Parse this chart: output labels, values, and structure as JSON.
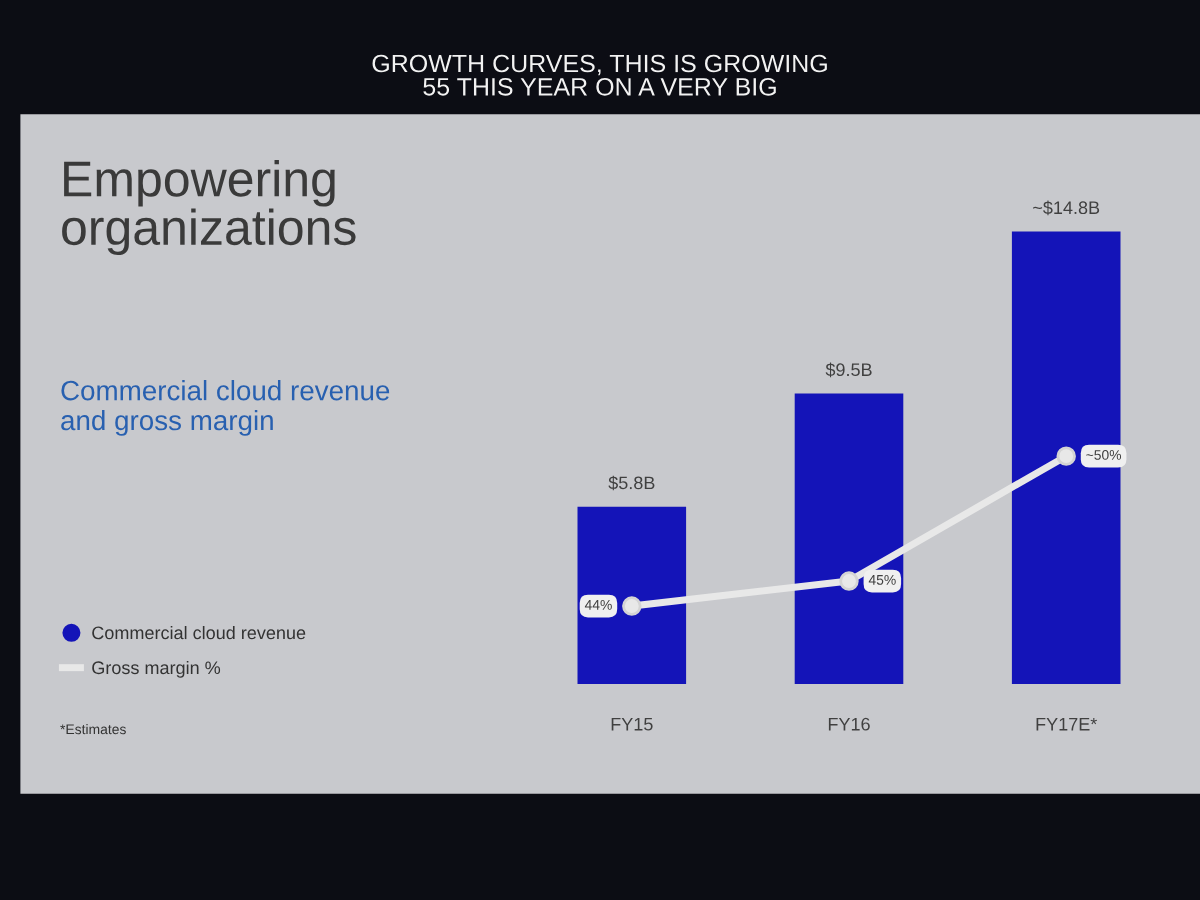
{
  "chart_data": {
    "type": "bar",
    "title": "Empowering\norganizations",
    "subtitle": "Commercial cloud revenue\nand gross margin",
    "annotations": [
      "GROWTH CURVES, THIS IS GROWING\n55 THIS YEAR ON A VERY BIG",
      "*Estimates"
    ],
    "categories": [
      "FY15",
      "FY16",
      "FY17E*"
    ],
    "series": [
      {
        "name": "Commercial cloud revenue",
        "color": "#1414b8",
        "values": [
          5.8,
          9.5,
          14.8
        ],
        "value_labels": [
          "$5.8B",
          "$9.5B",
          "~$14.8B"
        ]
      },
      {
        "name": "Gross margin %",
        "type": "line",
        "axis": "y2",
        "color": "#e8e8e8",
        "values": [
          44,
          45,
          50
        ],
        "value_labels": [
          "44%",
          "45%",
          "~50%"
        ]
      }
    ],
    "marker": "circle",
    "line_style": "solid",
    "legend": "left",
    "tick_labels": "x",
    "grid": false
  }
}
